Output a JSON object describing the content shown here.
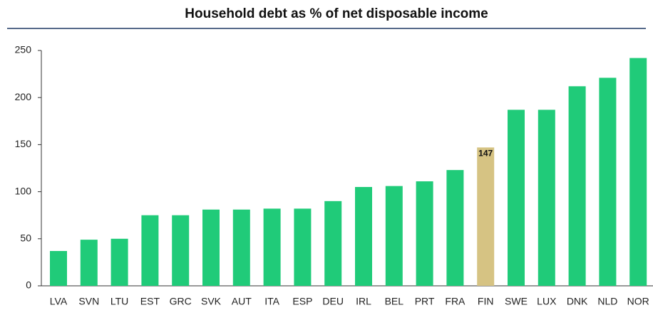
{
  "chart_data": {
    "type": "bar",
    "title": "Household debt as % of net disposable income",
    "categories": [
      "LVA",
      "SVN",
      "LTU",
      "EST",
      "GRC",
      "SVK",
      "AUT",
      "ITA",
      "ESP",
      "DEU",
      "IRL",
      "BEL",
      "PRT",
      "FRA",
      "FIN",
      "SWE",
      "LUX",
      "DNK",
      "NLD",
      "NOR"
    ],
    "values": [
      37,
      49,
      50,
      75,
      75,
      81,
      81,
      82,
      82,
      90,
      105,
      106,
      111,
      123,
      147,
      187,
      187,
      212,
      221,
      242
    ],
    "colors": [
      "#20cb79",
      "#20cb79",
      "#20cb79",
      "#20cb79",
      "#20cb79",
      "#20cb79",
      "#20cb79",
      "#20cb79",
      "#20cb79",
      "#20cb79",
      "#20cb79",
      "#20cb79",
      "#20cb79",
      "#20cb79",
      "#d6c383",
      "#20cb79",
      "#20cb79",
      "#20cb79",
      "#20cb79",
      "#20cb79"
    ],
    "value_labels": [
      null,
      null,
      null,
      null,
      null,
      null,
      null,
      null,
      null,
      null,
      null,
      null,
      null,
      null,
      "147",
      null,
      null,
      null,
      null,
      null
    ],
    "ylim": [
      0,
      250
    ],
    "yticks": [
      0,
      50,
      100,
      150,
      200,
      250
    ],
    "grid": false
  }
}
